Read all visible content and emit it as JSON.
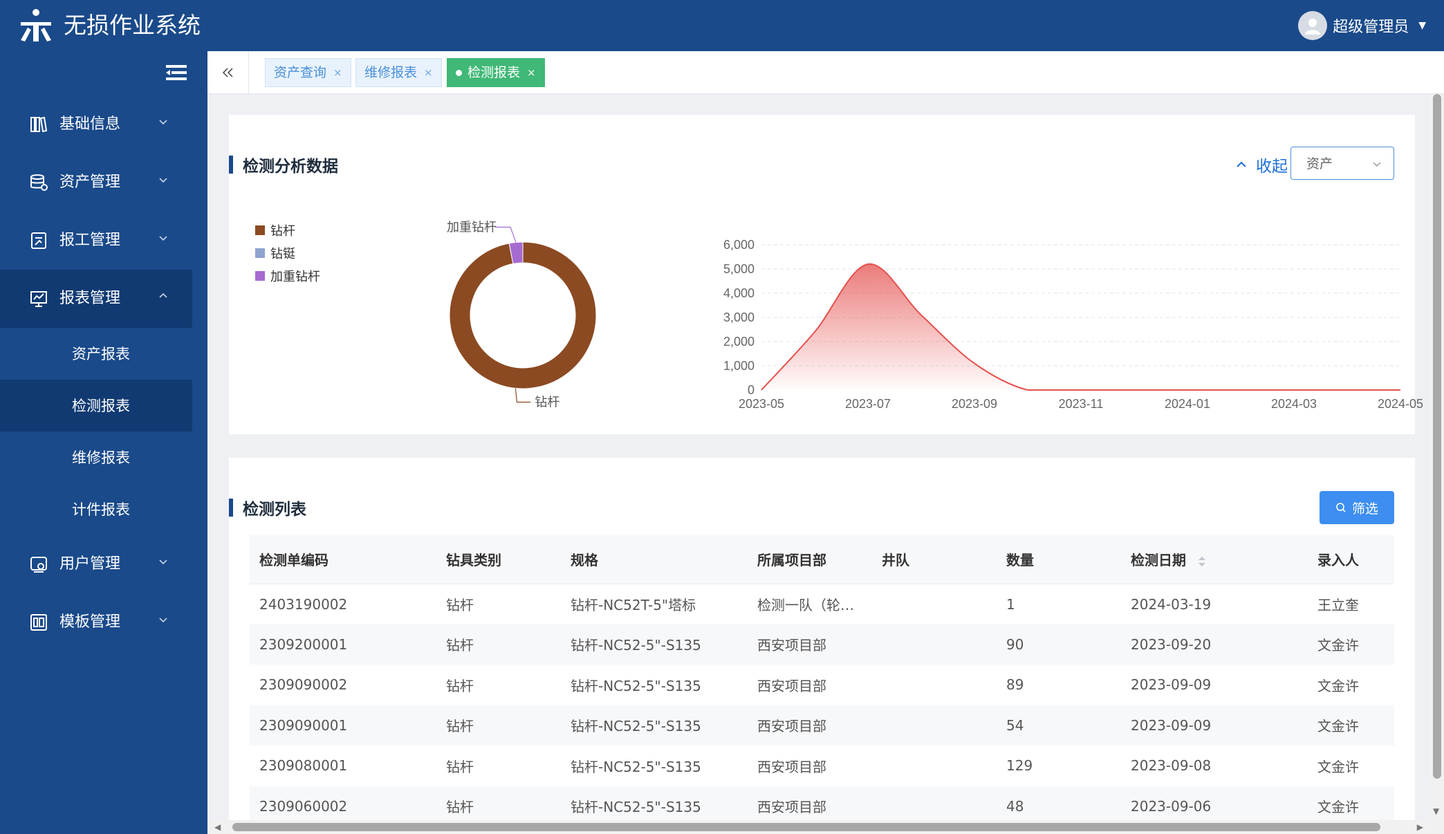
{
  "app": {
    "title": "无损作业系统",
    "user": "超级管理员"
  },
  "sidebar": {
    "items": [
      {
        "label": "基础信息",
        "icon": "books-icon"
      },
      {
        "label": "资产管理",
        "icon": "database-icon"
      },
      {
        "label": "报工管理",
        "icon": "form-edit-icon"
      },
      {
        "label": "报表管理",
        "icon": "presentation-chart-icon",
        "open": true
      },
      {
        "label": "用户管理",
        "icon": "user-settings-icon"
      },
      {
        "label": "模板管理",
        "icon": "template-icon"
      }
    ],
    "submenu": [
      {
        "label": "资产报表"
      },
      {
        "label": "检测报表",
        "active": true
      },
      {
        "label": "维修报表"
      },
      {
        "label": "计件报表"
      }
    ]
  },
  "tabs": [
    {
      "label": "资产查询",
      "active": false
    },
    {
      "label": "维修报表",
      "active": false
    },
    {
      "label": "检测报表",
      "active": true
    }
  ],
  "analysis": {
    "title": "检测分析数据",
    "collapse_label": "收起",
    "select_value": "资产"
  },
  "chart_data": [
    {
      "type": "pie",
      "variant": "donut",
      "legend": [
        "钻杆",
        "钻铤",
        "加重钻杆"
      ],
      "legend_position": "top-left",
      "slices": [
        {
          "name": "钻杆",
          "value": 97,
          "color": "#8b4a22"
        },
        {
          "name": "钻铤",
          "value": 0,
          "color": "#8fa3cf"
        },
        {
          "name": "加重钻杆",
          "value": 3,
          "color": "#a66bd1"
        }
      ],
      "labels_shown": [
        "加重钻杆",
        "钻杆"
      ]
    },
    {
      "type": "area",
      "x_ticks": [
        "2023-05",
        "2023-07",
        "2023-09",
        "2023-11",
        "2024-01",
        "2024-03",
        "2024-05"
      ],
      "y_ticks": [
        "0",
        "1,000",
        "2,000",
        "3,000",
        "4,000",
        "5,000",
        "6,000"
      ],
      "ylim": [
        0,
        6000
      ],
      "grid": true,
      "color": "#e4514e",
      "series": [
        {
          "x": [
            "2023-05",
            "2023-06",
            "2023-07",
            "2023-08",
            "2023-09",
            "2023-10",
            "2023-11",
            "2023-12",
            "2024-01",
            "2024-02",
            "2024-03",
            "2024-04",
            "2024-05"
          ],
          "values": [
            0,
            2400,
            5200,
            3100,
            1100,
            0,
            0,
            0,
            0,
            0,
            0,
            0,
            0
          ]
        }
      ]
    }
  ],
  "list": {
    "title": "检测列表",
    "filter_label": "筛选",
    "columns": [
      "检测单编码",
      "钻具类别",
      "规格",
      "所属项目部",
      "井队",
      "数量",
      "检测日期",
      "录入人"
    ],
    "rows": [
      [
        "2403190002",
        "钻杆",
        "钻杆-NC52T-5\"塔标",
        "检测一队（轮…",
        "",
        "1",
        "2024-03-19",
        "王立奎"
      ],
      [
        "2309200001",
        "钻杆",
        "钻杆-NC52-5\"-S135",
        "西安项目部",
        "",
        "90",
        "2023-09-20",
        "文金许"
      ],
      [
        "2309090002",
        "钻杆",
        "钻杆-NC52-5\"-S135",
        "西安项目部",
        "",
        "89",
        "2023-09-09",
        "文金许"
      ],
      [
        "2309090001",
        "钻杆",
        "钻杆-NC52-5\"-S135",
        "西安项目部",
        "",
        "54",
        "2023-09-09",
        "文金许"
      ],
      [
        "2309080001",
        "钻杆",
        "钻杆-NC52-5\"-S135",
        "西安项目部",
        "",
        "129",
        "2023-09-08",
        "文金许"
      ],
      [
        "2309060002",
        "钻杆",
        "钻杆-NC52-5\"-S135",
        "西安项目部",
        "",
        "48",
        "2023-09-06",
        "文金许"
      ]
    ]
  }
}
